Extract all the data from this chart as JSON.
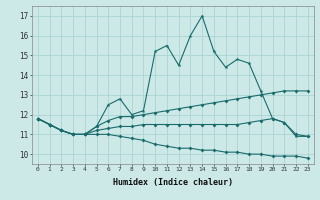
{
  "title": "",
  "xlabel": "Humidex (Indice chaleur)",
  "ylabel": "",
  "background_color": "#cce9e8",
  "grid_color": "#aad4d2",
  "line_color": "#1a6b6b",
  "xlim": [
    -0.5,
    23.5
  ],
  "ylim": [
    9.5,
    17.5
  ],
  "xticks": [
    0,
    1,
    2,
    3,
    4,
    5,
    6,
    7,
    8,
    9,
    10,
    11,
    12,
    13,
    14,
    15,
    16,
    17,
    18,
    19,
    20,
    21,
    22,
    23
  ],
  "yticks": [
    10,
    11,
    12,
    13,
    14,
    15,
    16,
    17
  ],
  "line1_y": [
    11.8,
    11.5,
    11.2,
    11.0,
    11.0,
    11.4,
    12.5,
    12.8,
    12.0,
    12.2,
    15.2,
    15.5,
    14.5,
    16.0,
    17.0,
    15.2,
    14.4,
    14.8,
    14.6,
    13.2,
    11.8,
    11.6,
    10.9,
    10.9
  ],
  "line2_y": [
    11.8,
    11.5,
    11.2,
    11.0,
    11.0,
    11.4,
    11.7,
    11.9,
    11.9,
    12.0,
    12.1,
    12.2,
    12.3,
    12.4,
    12.5,
    12.6,
    12.7,
    12.8,
    12.9,
    13.0,
    13.1,
    13.2,
    13.2,
    13.2
  ],
  "line3_y": [
    11.8,
    11.5,
    11.2,
    11.0,
    11.0,
    11.2,
    11.3,
    11.4,
    11.4,
    11.5,
    11.5,
    11.5,
    11.5,
    11.5,
    11.5,
    11.5,
    11.5,
    11.5,
    11.6,
    11.7,
    11.8,
    11.6,
    11.0,
    10.9
  ],
  "line4_y": [
    11.8,
    11.5,
    11.2,
    11.0,
    11.0,
    11.0,
    11.0,
    10.9,
    10.8,
    10.7,
    10.5,
    10.4,
    10.3,
    10.3,
    10.2,
    10.2,
    10.1,
    10.1,
    10.0,
    10.0,
    9.9,
    9.9,
    9.9,
    9.8
  ]
}
